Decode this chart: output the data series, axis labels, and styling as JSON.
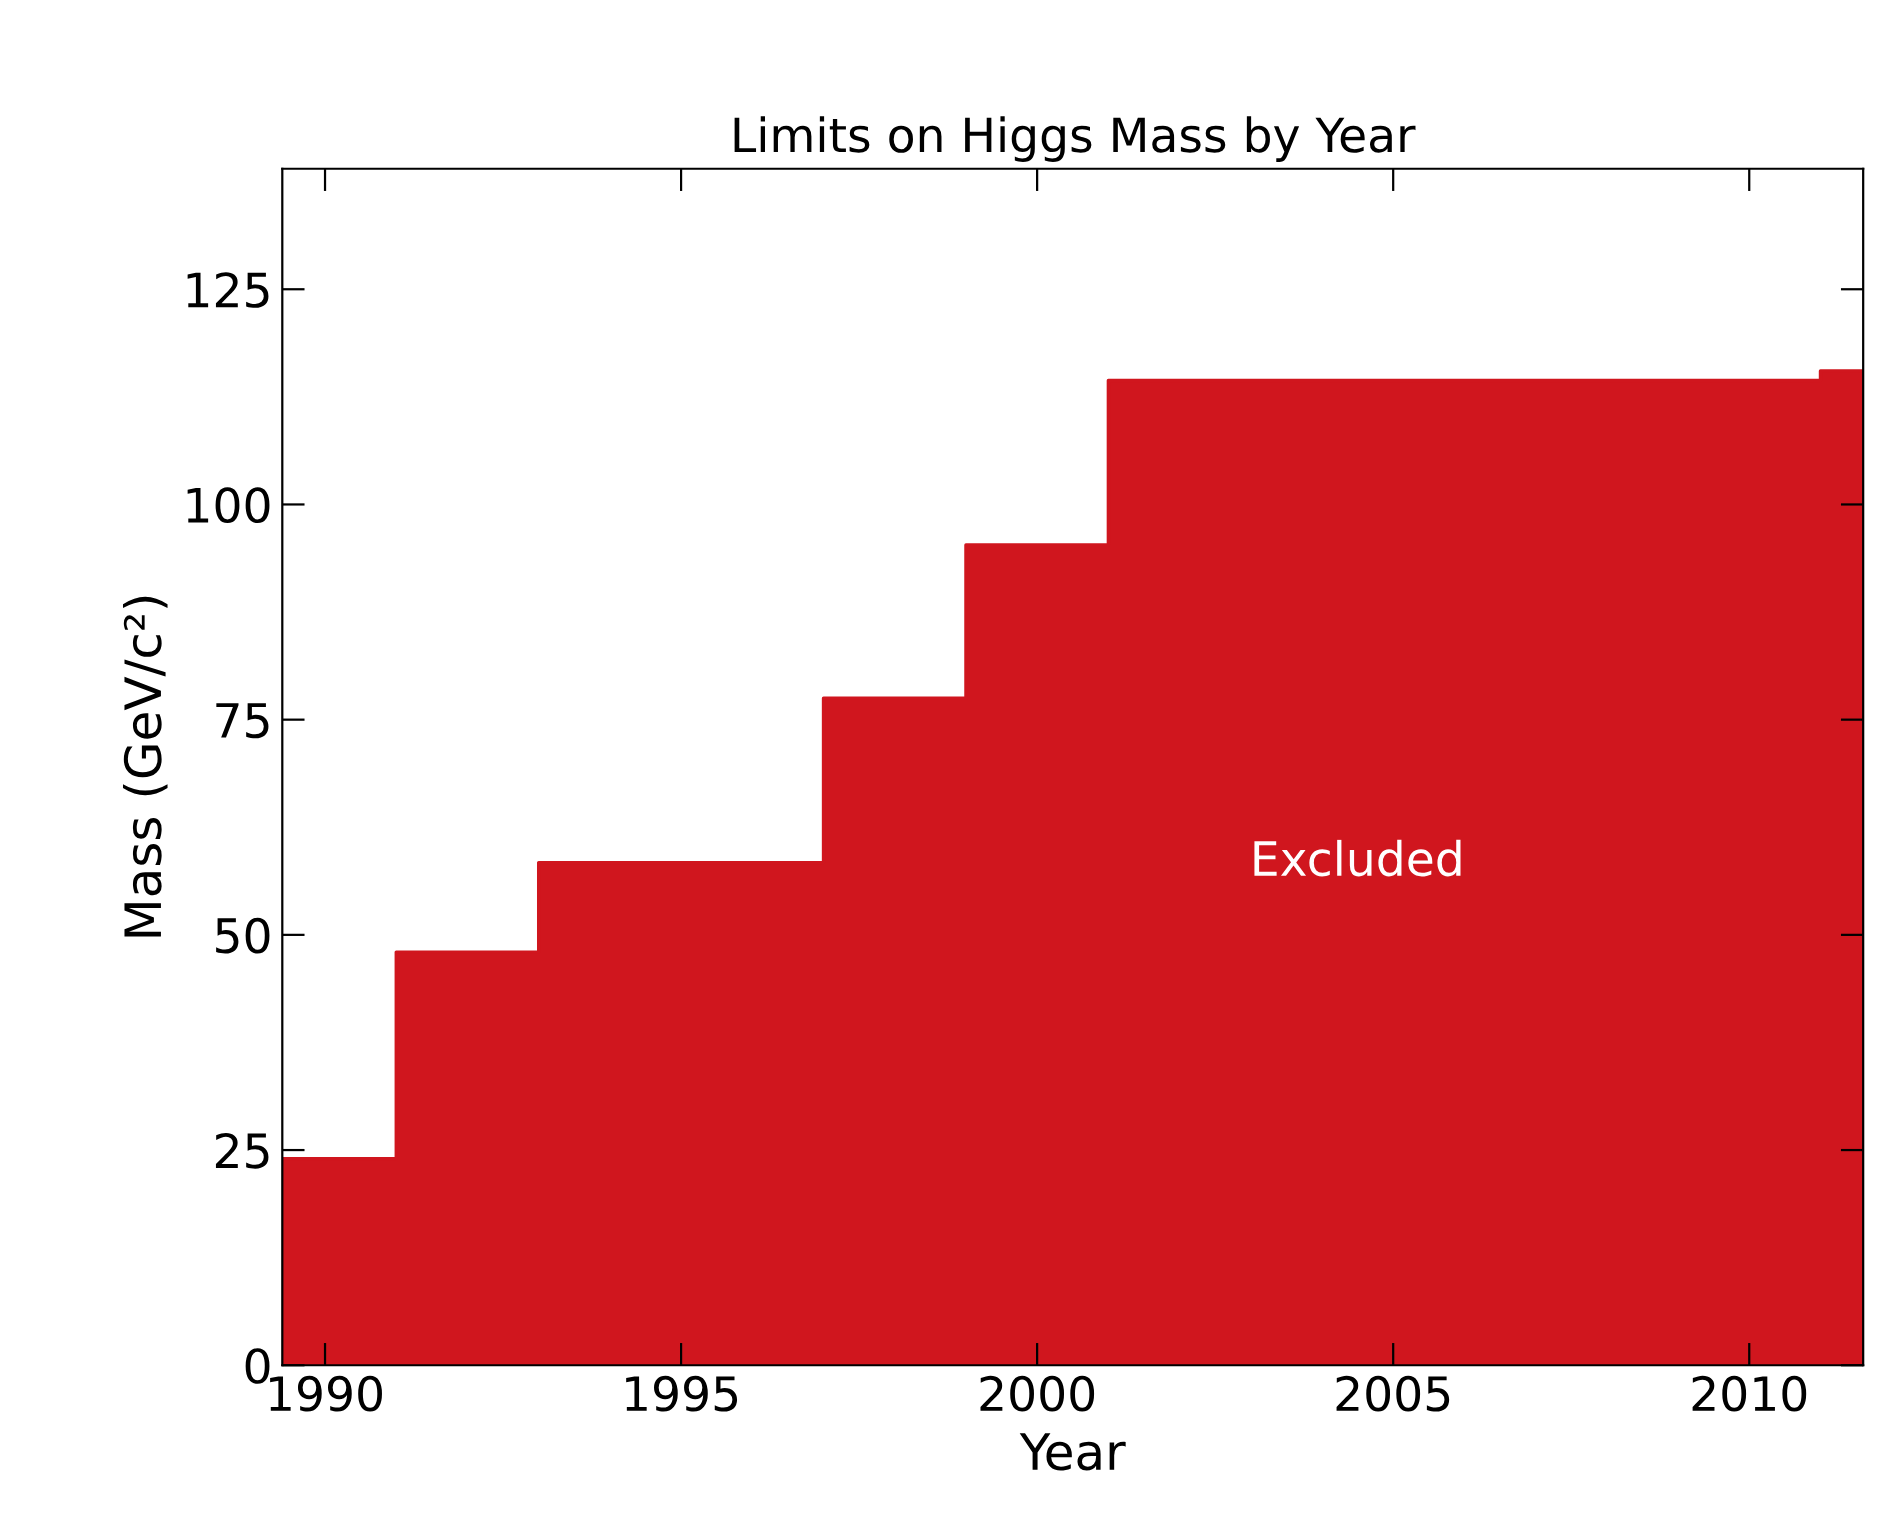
{
  "chart_data": {
    "type": "area",
    "title": "Limits on Higgs Mass by Year",
    "xlabel": "Year",
    "ylabel": "Mass (GeV/c²)",
    "x": [
      1989.4,
      1991,
      1991,
      1993,
      1993,
      1997,
      1997,
      1999,
      1999,
      2001,
      2001,
      2011,
      2011,
      2011.6
    ],
    "values": [
      24,
      24,
      48,
      48,
      58.4,
      58.4,
      77.5,
      77.5,
      95.3,
      95.3,
      114.4,
      114.4,
      115.5,
      115.5
    ],
    "color": "#d0161e",
    "xlim": [
      1989.4,
      2011.6
    ],
    "ylim": [
      0,
      139
    ],
    "xticks": [
      1990,
      1995,
      2000,
      2005,
      2010
    ],
    "yticks": [
      0,
      25,
      50,
      75,
      100,
      125
    ],
    "annotations": [
      "Excluded"
    ],
    "grid": false,
    "legend": false
  }
}
